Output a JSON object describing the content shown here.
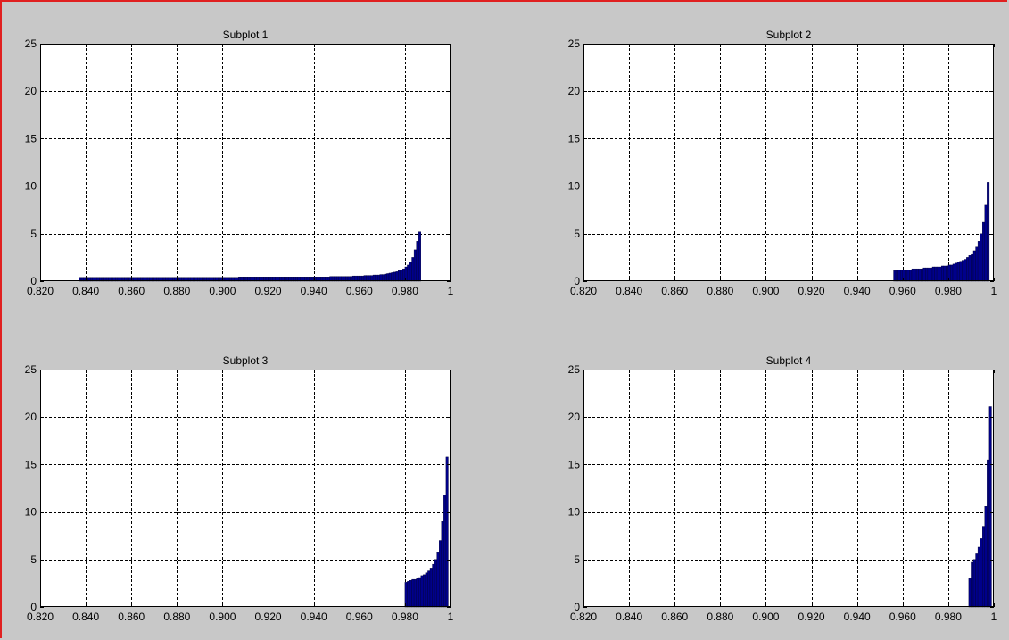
{
  "figure": {
    "background": "#c8c8c8",
    "frame_color": "#e02020"
  },
  "style": {
    "bar_color": "#00008b",
    "bar_edge": "#000033",
    "grid": true,
    "grid_style": "dashed"
  },
  "chart_data": [
    {
      "type": "bar",
      "title": "Subplot 1",
      "xlim": [
        0.82,
        1.0
      ],
      "ylim": [
        0,
        25
      ],
      "xticks": [
        0.82,
        0.84,
        0.86,
        0.88,
        0.9,
        0.92,
        0.94,
        0.96,
        0.98,
        1.0
      ],
      "xtick_labels": [
        "0.820",
        "0.840",
        "0.860",
        "0.880",
        "0.900",
        "0.920",
        "0.940",
        "0.960",
        "0.980",
        "1"
      ],
      "yticks": [
        0,
        5,
        10,
        15,
        20,
        25
      ],
      "ytick_labels": [
        "0",
        "5",
        "10",
        "15",
        "20",
        "25"
      ],
      "bar_width": 0.001,
      "x_start": 0.837,
      "values": [
        0.4,
        0.4,
        0.4,
        0.4,
        0.4,
        0.4,
        0.4,
        0.4,
        0.4,
        0.4,
        0.4,
        0.4,
        0.4,
        0.4,
        0.4,
        0.4,
        0.4,
        0.4,
        0.4,
        0.4,
        0.4,
        0.4,
        0.4,
        0.4,
        0.4,
        0.4,
        0.4,
        0.4,
        0.4,
        0.4,
        0.4,
        0.4,
        0.4,
        0.4,
        0.4,
        0.4,
        0.4,
        0.4,
        0.4,
        0.4,
        0.4,
        0.4,
        0.4,
        0.4,
        0.4,
        0.4,
        0.4,
        0.4,
        0.4,
        0.4,
        0.4,
        0.4,
        0.4,
        0.4,
        0.4,
        0.4,
        0.4,
        0.4,
        0.4,
        0.4,
        0.4,
        0.4,
        0.4,
        0.4,
        0.4,
        0.4,
        0.4,
        0.4,
        0.4,
        0.4,
        0.45,
        0.45,
        0.45,
        0.45,
        0.45,
        0.45,
        0.45,
        0.45,
        0.45,
        0.45,
        0.45,
        0.45,
        0.45,
        0.45,
        0.45,
        0.45,
        0.45,
        0.45,
        0.45,
        0.45,
        0.45,
        0.45,
        0.45,
        0.45,
        0.45,
        0.45,
        0.45,
        0.45,
        0.45,
        0.45,
        0.45,
        0.45,
        0.45,
        0.45,
        0.45,
        0.45,
        0.45,
        0.45,
        0.45,
        0.45,
        0.5,
        0.5,
        0.5,
        0.5,
        0.5,
        0.5,
        0.5,
        0.5,
        0.5,
        0.5,
        0.55,
        0.55,
        0.55,
        0.55,
        0.55,
        0.6,
        0.6,
        0.6,
        0.6,
        0.65,
        0.65,
        0.65,
        0.7,
        0.7,
        0.75,
        0.8,
        0.85,
        0.9,
        0.95,
        1.0,
        1.1,
        1.2,
        1.3,
        1.5,
        1.7,
        2.0,
        2.5,
        3.3,
        4.2,
        5.2
      ]
    },
    {
      "type": "bar",
      "title": "Subplot 2",
      "xlim": [
        0.82,
        1.0
      ],
      "ylim": [
        0,
        25
      ],
      "xticks": [
        0.82,
        0.84,
        0.86,
        0.88,
        0.9,
        0.92,
        0.94,
        0.96,
        0.98,
        1.0
      ],
      "xtick_labels": [
        "0.820",
        "0.840",
        "0.860",
        "0.880",
        "0.900",
        "0.920",
        "0.940",
        "0.960",
        "0.980",
        "1"
      ],
      "yticks": [
        0,
        5,
        10,
        15,
        20,
        25
      ],
      "ytick_labels": [
        "0",
        "5",
        "10",
        "15",
        "20",
        "25"
      ],
      "bar_width": 0.001,
      "x_start": 0.956,
      "values": [
        1.1,
        1.2,
        1.2,
        1.2,
        1.2,
        1.2,
        1.2,
        1.2,
        1.3,
        1.3,
        1.3,
        1.3,
        1.3,
        1.4,
        1.4,
        1.4,
        1.4,
        1.5,
        1.5,
        1.5,
        1.5,
        1.6,
        1.6,
        1.6,
        1.7,
        1.7,
        1.8,
        1.9,
        2.0,
        2.1,
        2.2,
        2.3,
        2.5,
        2.7,
        2.9,
        3.2,
        3.6,
        4.2,
        5.0,
        6.2,
        8.0,
        10.4
      ]
    },
    {
      "type": "bar",
      "title": "Subplot 3",
      "xlim": [
        0.82,
        1.0
      ],
      "ylim": [
        0,
        25
      ],
      "xticks": [
        0.82,
        0.84,
        0.86,
        0.88,
        0.9,
        0.92,
        0.94,
        0.96,
        0.98,
        1.0
      ],
      "xtick_labels": [
        "0.820",
        "0.840",
        "0.860",
        "0.880",
        "0.900",
        "0.920",
        "0.940",
        "0.960",
        "0.980",
        "1"
      ],
      "yticks": [
        0,
        5,
        10,
        15,
        20,
        25
      ],
      "ytick_labels": [
        "0",
        "5",
        "10",
        "15",
        "20",
        "25"
      ],
      "bar_width": 0.001,
      "x_start": 0.98,
      "values": [
        2.6,
        2.7,
        2.8,
        2.9,
        2.9,
        3.0,
        3.1,
        3.3,
        3.4,
        3.6,
        3.8,
        4.1,
        4.5,
        5.0,
        5.8,
        7.0,
        9.0,
        11.8,
        15.8
      ]
    },
    {
      "type": "bar",
      "title": "Subplot 4",
      "xlim": [
        0.82,
        1.0
      ],
      "ylim": [
        0,
        25
      ],
      "xticks": [
        0.82,
        0.84,
        0.86,
        0.88,
        0.9,
        0.92,
        0.94,
        0.96,
        0.98,
        1.0
      ],
      "xtick_labels": [
        "0.820",
        "0.840",
        "0.860",
        "0.880",
        "0.900",
        "0.920",
        "0.940",
        "0.960",
        "0.980",
        "1"
      ],
      "yticks": [
        0,
        5,
        10,
        15,
        20,
        25
      ],
      "ytick_labels": [
        "0",
        "5",
        "10",
        "15",
        "20",
        "25"
      ],
      "bar_width": 0.001,
      "x_start": 0.989,
      "values": [
        3.0,
        4.7,
        5.0,
        5.6,
        6.3,
        7.2,
        8.5,
        10.6,
        15.5,
        21.1
      ]
    }
  ]
}
